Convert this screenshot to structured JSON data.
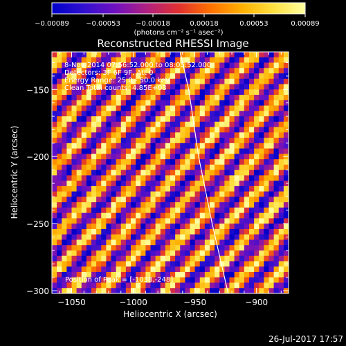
{
  "chart_data": {
    "type": "heatmap",
    "title": "Reconstructed RHESSI Image",
    "xlabel": "Heliocentric X (arcsec)",
    "ylabel": "Heliocentric Y (arcsec)",
    "xlim": [
      -1066,
      -874
    ],
    "ylim": [
      -302,
      -122
    ],
    "x_ticks": [
      -1050,
      -1000,
      -950,
      -900
    ],
    "y_ticks": [
      -300,
      -250,
      -200,
      -150
    ],
    "x_tick_labels": [
      "−1050",
      "−1000",
      "−950",
      "−900"
    ],
    "y_tick_labels": [
      "−300",
      "−250",
      "−200",
      "−150"
    ],
    "colorbar": {
      "range": [
        -0.00089,
        0.00089
      ],
      "ticks": [
        -0.00089,
        -0.00053,
        -0.00018,
        0.00018,
        0.00053,
        0.00089
      ],
      "tick_labels": [
        "−0.00089",
        "−0.00053",
        "−0.00018",
        "0.00018",
        "0.00053",
        "0.00089"
      ],
      "units_label": "(photons cm⁻² s⁻¹ asec⁻²)",
      "colormap": [
        "#0000c8",
        "#3010d0",
        "#7010c0",
        "#b02080",
        "#e03030",
        "#ff7000",
        "#ffb000",
        "#ffe040",
        "#ffffa0"
      ]
    },
    "annotations": [
      "8-Nov-2014 07:56:52.000 to 08:05:52.000",
      "Detectors: 3F 6F 9F, Att 0",
      "Energy Range: 25.0 - 50.0 keV",
      "Clean    Total counts: 4.85E+03"
    ],
    "peak_text": "Position of Peak = [-1038,-248]",
    "peak_position": [
      -1038,
      -248
    ],
    "limb_curve": [
      [
        -962,
        -122
      ],
      [
        -955,
        -150
      ],
      [
        -947,
        -200
      ],
      [
        -936,
        -250
      ],
      [
        -923,
        -302
      ]
    ],
    "pattern": {
      "kind": "diagonal fringes",
      "pixel_size_arcsec": 4,
      "fringe_period_pixels": 6.5
    }
  },
  "timestamp": "26-Jul-2017 17:57"
}
